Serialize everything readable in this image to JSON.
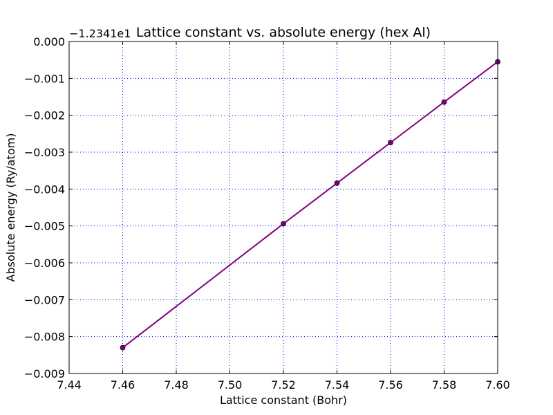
{
  "chart_data": {
    "type": "line",
    "title": "Lattice constant vs. absolute energy (hex Al)",
    "xlabel": "Lattice constant (Bohr)",
    "ylabel": "Absolute energy (Ry/atom)",
    "y_offset_label": "−1.2341e1",
    "xlim": [
      7.44,
      7.6
    ],
    "ylim": [
      -0.009,
      0.0
    ],
    "x_ticks": [
      "7.44",
      "7.46",
      "7.48",
      "7.50",
      "7.52",
      "7.54",
      "7.56",
      "7.58",
      "7.60"
    ],
    "y_ticks": [
      "−0.009",
      "−0.008",
      "−0.007",
      "−0.006",
      "−0.005",
      "−0.004",
      "−0.003",
      "−0.002",
      "−0.001",
      "0.000"
    ],
    "grid": true,
    "series": [
      {
        "color": "#800080",
        "x": [
          7.46,
          7.52,
          7.54,
          7.56,
          7.58,
          7.6
        ],
        "y": [
          -0.0083,
          -0.00494,
          -0.00384,
          -0.00274,
          -0.00164,
          -0.00055
        ]
      }
    ]
  }
}
